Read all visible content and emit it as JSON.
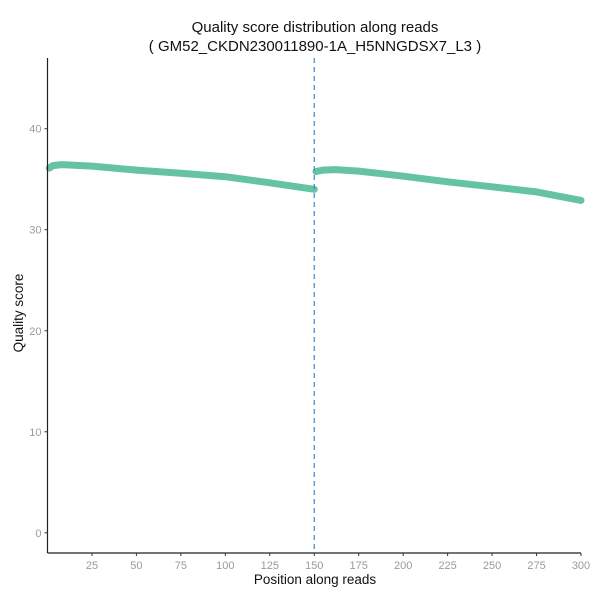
{
  "chart_data": {
    "type": "line",
    "title": "Quality score distribution along reads",
    "subtitle": "( GM52_CKDN230011890-1A_H5NNGDSX7_L3 )",
    "xlabel": "Position along reads",
    "ylabel": "Quality score",
    "xlim": [
      0,
      300
    ],
    "ylim": [
      -2,
      47
    ],
    "x_ticks": [
      25,
      50,
      75,
      100,
      125,
      150,
      175,
      200,
      225,
      250,
      275,
      300
    ],
    "y_ticks": [
      0,
      10,
      20,
      30,
      40
    ],
    "grid": false,
    "line_color": "#66c2a5",
    "vline": {
      "x": 150,
      "style": "dashed",
      "color": "#3f86c8"
    },
    "segments": [
      {
        "x": [
          1,
          3,
          8,
          25,
          50,
          75,
          100,
          125,
          150
        ],
        "y": [
          36.1,
          36.35,
          36.45,
          36.3,
          35.9,
          35.6,
          35.25,
          34.65,
          34.0
        ]
      },
      {
        "x": [
          151,
          155,
          162,
          175,
          200,
          225,
          250,
          275,
          300
        ],
        "y": [
          35.75,
          35.9,
          35.95,
          35.8,
          35.3,
          34.75,
          34.25,
          33.75,
          32.9
        ]
      }
    ]
  }
}
